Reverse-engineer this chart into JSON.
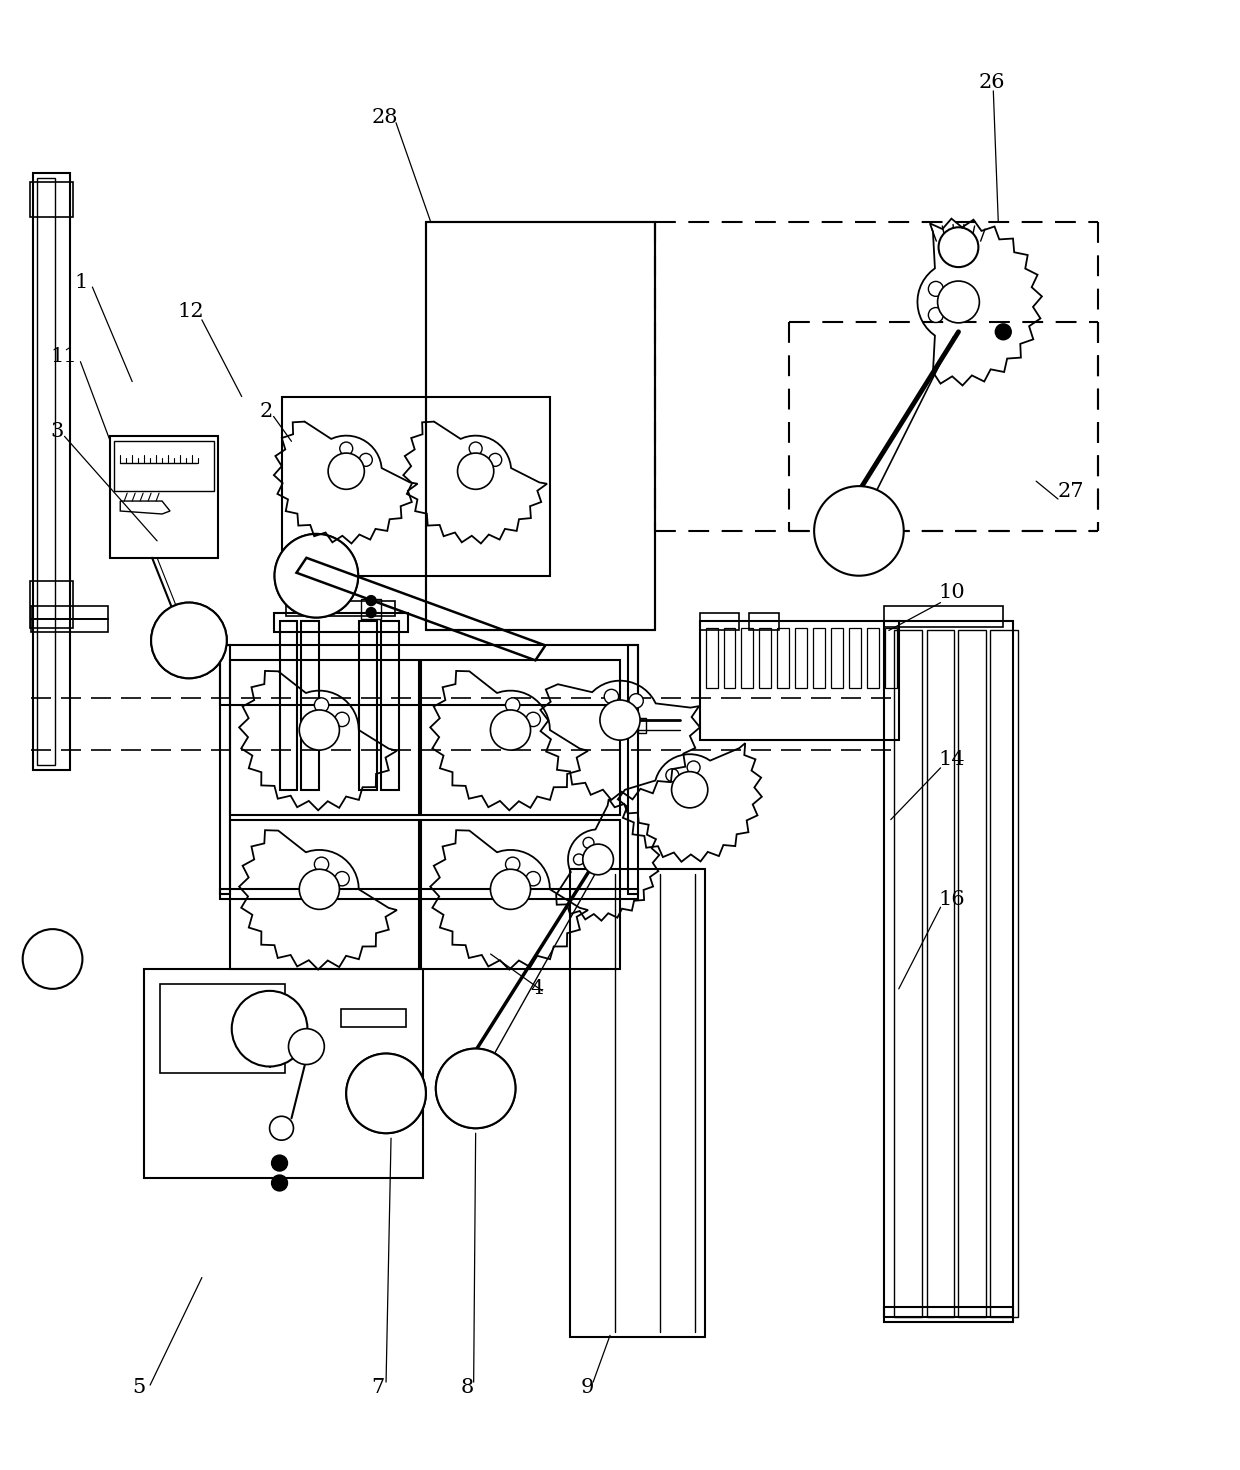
{
  "background_color": "#ffffff",
  "line_color": "#000000",
  "figure_width": 12.4,
  "figure_height": 14.7,
  "dpi": 100
}
